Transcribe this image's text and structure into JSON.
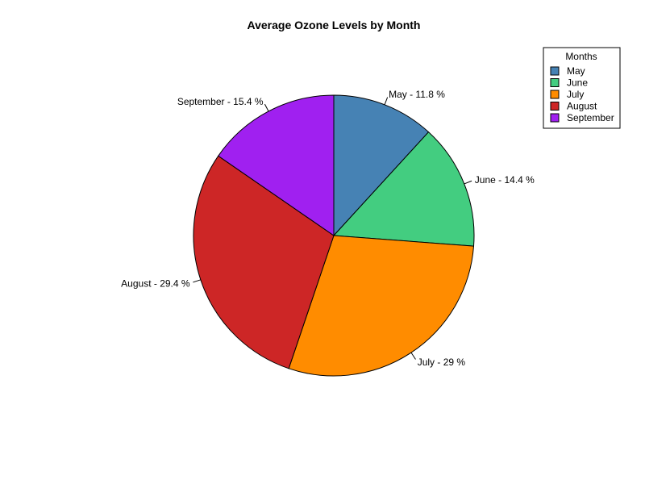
{
  "chart_data": {
    "type": "pie",
    "title": "Average Ozone Levels by Month",
    "start_angle_deg": 90,
    "direction": "clockwise",
    "slices": [
      {
        "category": "May",
        "value": 11.8,
        "label": "May - 11.8 %",
        "color": "#4682B4"
      },
      {
        "category": "June",
        "value": 14.4,
        "label": "June - 14.4 %",
        "color": "#43CD80"
      },
      {
        "category": "July",
        "value": 29.0,
        "label": "July - 29 %",
        "color": "#FF8C00"
      },
      {
        "category": "August",
        "value": 29.4,
        "label": "August - 29.4 %",
        "color": "#CD2626"
      },
      {
        "category": "September",
        "value": 15.4,
        "label": "September - 15.4 %",
        "color": "#A020F0"
      }
    ],
    "legend": {
      "title": "Months",
      "position": "top-right",
      "items": [
        "May",
        "June",
        "July",
        "August",
        "September"
      ]
    }
  }
}
